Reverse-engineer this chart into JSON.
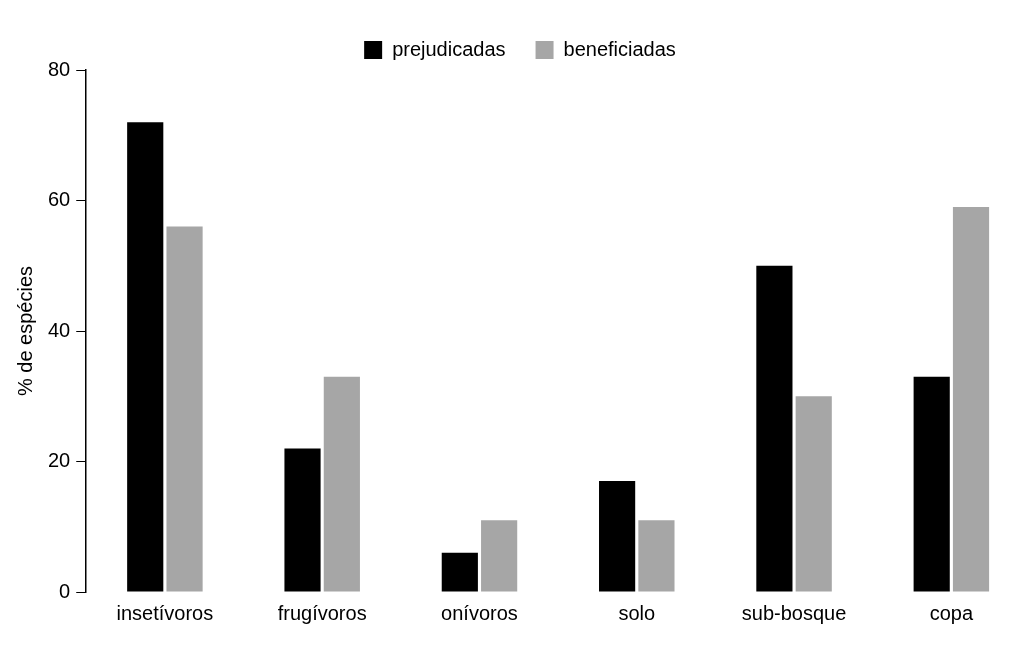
{
  "chart_data": {
    "type": "bar",
    "ylabel": "% de espécies",
    "categories": [
      "insetívoros",
      "frugívoros",
      "onívoros",
      "solo",
      "sub-bosque",
      "copa"
    ],
    "series": [
      {
        "name": "prejudicadas",
        "color": "#000000",
        "values": [
          72,
          22,
          6,
          17,
          50,
          33
        ]
      },
      {
        "name": "beneficiadas",
        "color": "#a6a6a6",
        "values": [
          56,
          33,
          11,
          11,
          30,
          59
        ]
      }
    ],
    "ylim": [
      0,
      80
    ],
    "yticks": [
      0,
      20,
      40,
      60,
      80
    ],
    "grid": false,
    "legend": "top"
  }
}
